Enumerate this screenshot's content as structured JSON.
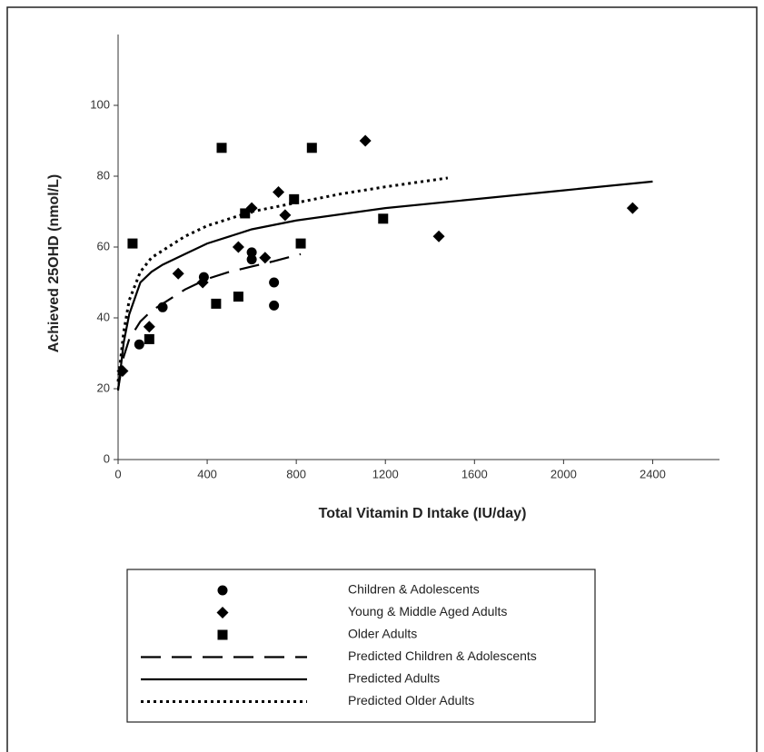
{
  "chart_data": {
    "type": "scatter",
    "x_label": "Total Vitamin D Intake (IU/day)",
    "y_label": "Achieved 25OHD (nmol/L)",
    "xlim": [
      0,
      2700
    ],
    "ylim": [
      0,
      120
    ],
    "xticks": [
      0,
      400,
      800,
      1200,
      1600,
      2000,
      2400
    ],
    "yticks": [
      0,
      20,
      40,
      60,
      80,
      100
    ],
    "series": [
      {
        "name": "Children & Adolescents",
        "kind": "points",
        "marker": "circle",
        "color": "#000000",
        "x": [
          95,
          200,
          385,
          600,
          600,
          700,
          700
        ],
        "values": [
          32.5,
          43,
          51.5,
          58.5,
          56.5,
          50,
          43.5
        ]
      },
      {
        "name": "Young & Middle Aged Adults",
        "kind": "points",
        "marker": "diamond",
        "color": "#000000",
        "x": [
          20,
          140,
          270,
          380,
          540,
          600,
          660,
          720,
          750,
          1110,
          1440,
          2310
        ],
        "values": [
          25,
          37.5,
          52.5,
          50,
          60,
          71,
          57,
          75.5,
          69,
          90,
          63,
          71
        ]
      },
      {
        "name": "Older Adults",
        "kind": "points",
        "marker": "square",
        "color": "#000000",
        "x": [
          65,
          140,
          440,
          465,
          540,
          570,
          790,
          820,
          870,
          1190
        ],
        "values": [
          61,
          34,
          44,
          88,
          46,
          69.5,
          73.5,
          61,
          88,
          68
        ]
      },
      {
        "name": "Predicted Children & Adolescents",
        "kind": "line",
        "dash": "22 12",
        "color": "#000000",
        "x": [
          0,
          25,
          50,
          100,
          150,
          200,
          300,
          400,
          500,
          600,
          700,
          820
        ],
        "values": [
          20,
          29,
          34,
          39,
          42,
          44,
          48,
          51,
          53,
          54.5,
          56,
          58
        ]
      },
      {
        "name": "Predicted Adults",
        "kind": "line",
        "dash": "none",
        "color": "#000000",
        "x": [
          0,
          25,
          50,
          100,
          150,
          200,
          300,
          400,
          600,
          800,
          1200,
          1600,
          2000,
          2400
        ],
        "values": [
          19.5,
          33,
          41,
          50,
          53,
          55,
          58,
          61,
          65,
          67.5,
          71,
          73.5,
          76,
          78.5
        ]
      },
      {
        "name": "Predicted Older Adults",
        "kind": "line",
        "dash": "3 4",
        "color": "#000000",
        "x": [
          0,
          25,
          50,
          100,
          150,
          200,
          300,
          400,
          600,
          800,
          1000,
          1200,
          1480
        ],
        "values": [
          22,
          36,
          45,
          53,
          57,
          59,
          63,
          66,
          70,
          72.5,
          75,
          77,
          79.5
        ]
      }
    ]
  }
}
